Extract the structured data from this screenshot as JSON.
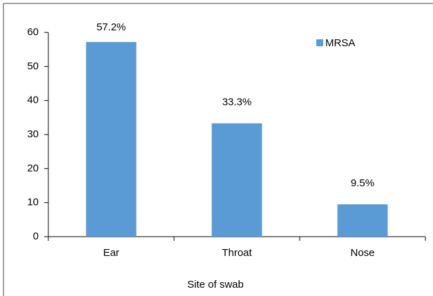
{
  "chart_data": {
    "type": "bar",
    "x_label": "Site of swab",
    "categories": [
      "Ear",
      "Throat",
      "Nose"
    ],
    "values": [
      57.2,
      33.3,
      9.5
    ],
    "value_labels": [
      "57.2%",
      "33.3%",
      "9.5%"
    ],
    "series_name": "MRSA",
    "color": "#5b9bd5",
    "ylim": [
      0,
      60
    ],
    "yticks": [
      0,
      10,
      20,
      30,
      40,
      50,
      60
    ],
    "legend": "upper right"
  }
}
